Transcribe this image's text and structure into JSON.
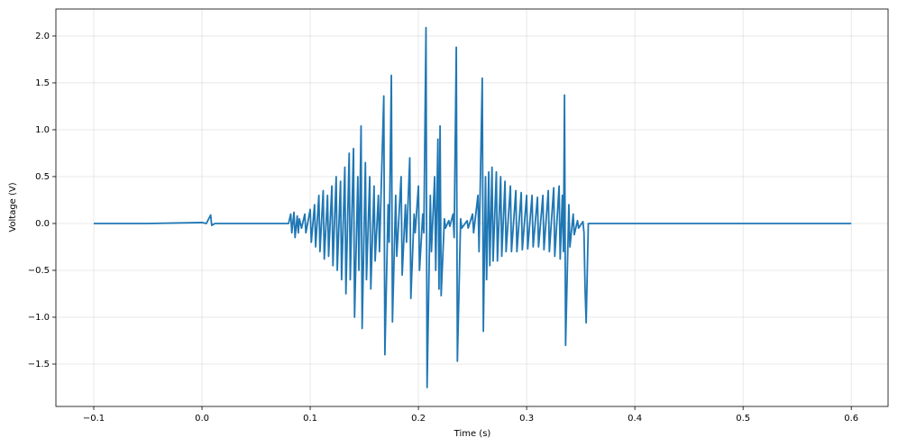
{
  "chart_data": {
    "type": "line",
    "xlabel": "Time (s)",
    "ylabel": "Voltage (V)",
    "color": "#1f77b4",
    "grid": true,
    "xlim": [
      -0.135,
      0.634
    ],
    "ylim": [
      -1.952,
      2.288
    ],
    "xticks": [
      {
        "value": -0.1,
        "label": "−0.1"
      },
      {
        "value": 0,
        "label": "0.0"
      },
      0.1,
      0.2,
      0.3,
      0.4,
      0.5,
      0.6
    ],
    "yticks": [
      {
        "value": -1.5,
        "label": "−1.5"
      },
      {
        "value": -1,
        "label": "−1.0"
      },
      {
        "value": -0.5,
        "label": "−0.5"
      },
      {
        "value": 0,
        "label": "0.0"
      },
      0.5,
      {
        "value": 1,
        "label": "1.0"
      },
      1.5,
      {
        "value": 2,
        "label": "2.0"
      }
    ],
    "x": [
      -0.1,
      -0.05,
      0.0,
      0.004,
      0.008,
      0.009,
      0.012,
      0.05,
      0.08,
      0.082,
      0.083,
      0.085,
      0.086,
      0.088,
      0.089,
      0.09,
      0.092,
      0.095,
      0.096,
      0.1,
      0.101,
      0.104,
      0.105,
      0.108,
      0.109,
      0.112,
      0.113,
      0.116,
      0.117,
      0.12,
      0.121,
      0.124,
      0.125,
      0.128,
      0.129,
      0.132,
      0.133,
      0.136,
      0.137,
      0.14,
      0.141,
      0.144,
      0.145,
      0.147,
      0.148,
      0.151,
      0.152,
      0.155,
      0.156,
      0.159,
      0.16,
      0.163,
      0.164,
      0.168,
      0.169,
      0.172,
      0.173,
      0.175,
      0.176,
      0.179,
      0.18,
      0.184,
      0.185,
      0.188,
      0.189,
      0.192,
      0.193,
      0.196,
      0.197,
      0.2,
      0.201,
      0.204,
      0.205,
      0.207,
      0.208,
      0.211,
      0.212,
      0.215,
      0.216,
      0.218,
      0.219,
      0.22,
      0.221,
      0.224,
      0.225,
      0.228,
      0.229,
      0.232,
      0.233,
      0.235,
      0.236,
      0.239,
      0.24,
      0.245,
      0.246,
      0.25,
      0.251,
      0.255,
      0.256,
      0.259,
      0.26,
      0.262,
      0.263,
      0.265,
      0.266,
      0.268,
      0.269,
      0.272,
      0.273,
      0.276,
      0.277,
      0.28,
      0.281,
      0.285,
      0.286,
      0.29,
      0.291,
      0.295,
      0.296,
      0.3,
      0.301,
      0.305,
      0.306,
      0.31,
      0.311,
      0.315,
      0.316,
      0.32,
      0.321,
      0.325,
      0.326,
      0.33,
      0.331,
      0.333,
      0.334,
      0.335,
      0.336,
      0.339,
      0.34,
      0.343,
      0.344,
      0.347,
      0.348,
      0.352,
      0.353,
      0.354,
      0.355,
      0.357,
      0.36,
      0.4,
      0.6
    ],
    "values": [
      0,
      0,
      0.01,
      0,
      0.09,
      -0.02,
      0,
      0,
      0,
      0.1,
      -0.1,
      0.12,
      -0.15,
      0.08,
      -0.1,
      0.05,
      -0.05,
      0.1,
      -0.1,
      0.15,
      -0.2,
      0.2,
      -0.25,
      0.3,
      -0.3,
      0.35,
      -0.38,
      0.3,
      -0.35,
      0.4,
      -0.45,
      0.5,
      -0.5,
      0.45,
      -0.6,
      0.6,
      -0.75,
      0.75,
      -0.6,
      0.8,
      -1.0,
      0.5,
      -0.5,
      1.04,
      -1.12,
      0.65,
      -0.6,
      0.5,
      -0.7,
      0.4,
      -0.4,
      0.3,
      -0.3,
      1.36,
      -1.4,
      0.2,
      -0.2,
      1.58,
      -1.05,
      0.3,
      -0.35,
      0.5,
      -0.55,
      0.2,
      -0.2,
      0.7,
      -0.8,
      0.1,
      -0.1,
      0.4,
      -0.5,
      0.1,
      -0.1,
      2.09,
      -1.75,
      0.3,
      -0.3,
      0.5,
      -0.5,
      0.9,
      -0.7,
      1.04,
      -0.77,
      0.05,
      -0.05,
      0.03,
      -0.03,
      0.1,
      -0.15,
      1.88,
      -1.47,
      0.05,
      -0.05,
      0.03,
      -0.05,
      0.1,
      -0.1,
      0.3,
      -0.3,
      1.55,
      -1.15,
      0.5,
      -0.6,
      0.55,
      -0.45,
      0.6,
      -0.4,
      0.55,
      -0.4,
      0.5,
      -0.35,
      0.45,
      -0.3,
      0.4,
      -0.3,
      0.35,
      -0.3,
      0.33,
      -0.28,
      0.3,
      -0.27,
      0.3,
      -0.25,
      0.28,
      -0.25,
      0.3,
      -0.28,
      0.35,
      -0.3,
      0.38,
      -0.35,
      0.4,
      -0.38,
      0.3,
      -0.3,
      1.37,
      -1.3,
      0.2,
      -0.25,
      0.1,
      -0.12,
      0.03,
      -0.05,
      0.02,
      -0.1,
      -0.7,
      -1.06,
      0,
      0,
      0,
      0
    ]
  }
}
